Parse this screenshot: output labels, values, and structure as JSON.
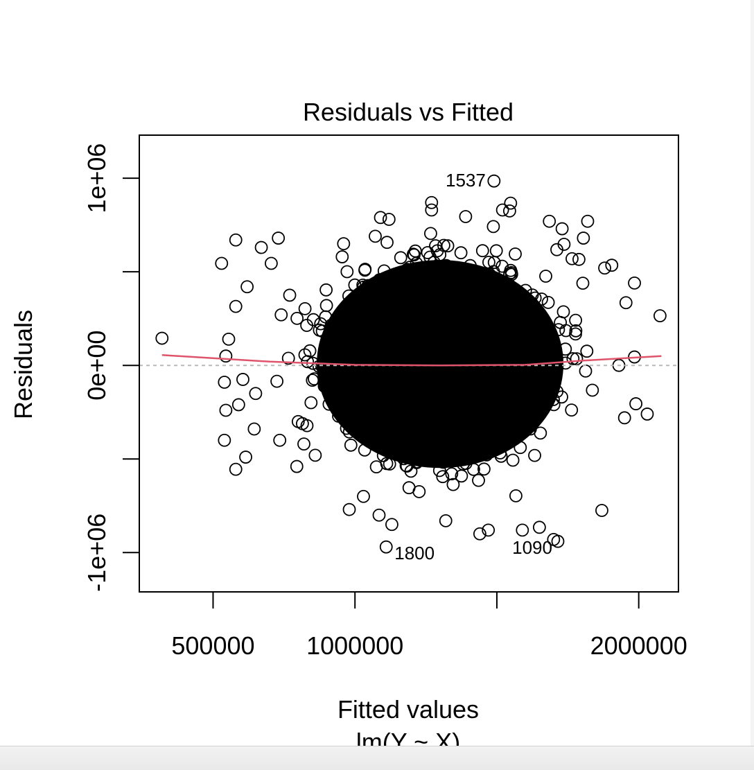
{
  "chart_data": {
    "type": "scatter",
    "title": "Residuals vs Fitted",
    "xlabel": "Fitted values",
    "xsublabel": "lm(Y ~ X)",
    "ylabel": "Residuals",
    "xlim": [
      240000,
      2140000
    ],
    "ylim": [
      -1210000,
      1230000
    ],
    "x_ticks": [
      500000,
      1000000,
      1500000,
      2000000
    ],
    "x_tick_labels": [
      "500000",
      "1000000",
      "",
      "2000000"
    ],
    "y_ticks": [
      -1000000,
      -500000,
      0,
      500000,
      1000000
    ],
    "y_tick_labels": [
      "-1e+06",
      "",
      "0e+00",
      "",
      "1e+06"
    ],
    "grid": false,
    "reference_line": 0,
    "smooth_line": {
      "color": "#DF536B",
      "x": [
        320000,
        700000,
        1000000,
        1300000,
        1600000,
        1800000,
        2080000
      ],
      "y": [
        55000,
        20000,
        3000,
        0,
        3000,
        25000,
        50000
      ]
    },
    "labeled_points": [
      {
        "label": "1537",
        "x": 1490000,
        "y": 985000
      },
      {
        "label": "1800",
        "x": 1110000,
        "y": -970000
      },
      {
        "label": "1090",
        "x": 1715000,
        "y": -940000
      }
    ],
    "outlier_points": [
      {
        "x": 320000,
        "y": 145000
      },
      {
        "x": 2075000,
        "y": 265000
      },
      {
        "x": 730000,
        "y": 680000
      },
      {
        "x": 705000,
        "y": 545000
      },
      {
        "x": 770000,
        "y": 375000
      },
      {
        "x": 740000,
        "y": 270000
      },
      {
        "x": 725000,
        "y": -85000
      },
      {
        "x": 735000,
        "y": -400000
      },
      {
        "x": 795000,
        "y": -540000
      },
      {
        "x": 860000,
        "y": -480000
      },
      {
        "x": 980000,
        "y": -770000
      },
      {
        "x": 1030000,
        "y": -700000
      },
      {
        "x": 1085000,
        "y": -800000
      },
      {
        "x": 1130000,
        "y": -850000
      },
      {
        "x": 1320000,
        "y": -830000
      },
      {
        "x": 1440000,
        "y": -900000
      },
      {
        "x": 1470000,
        "y": -880000
      },
      {
        "x": 1590000,
        "y": -880000
      },
      {
        "x": 1650000,
        "y": -865000
      },
      {
        "x": 1700000,
        "y": -930000
      },
      {
        "x": 1870000,
        "y": -775000
      },
      {
        "x": 1950000,
        "y": -280000
      },
      {
        "x": 1990000,
        "y": -205000
      },
      {
        "x": 2030000,
        "y": -260000
      },
      {
        "x": 1930000,
        "y": 0
      },
      {
        "x": 1985000,
        "y": 45000
      },
      {
        "x": 1985000,
        "y": 440000
      },
      {
        "x": 1955000,
        "y": 335000
      },
      {
        "x": 1905000,
        "y": 535000
      },
      {
        "x": 1820000,
        "y": 770000
      },
      {
        "x": 1270000,
        "y": 870000
      },
      {
        "x": 1270000,
        "y": 830000
      },
      {
        "x": 1390000,
        "y": 795000
      },
      {
        "x": 1520000,
        "y": 830000
      },
      {
        "x": 1545000,
        "y": 825000
      },
      {
        "x": 1730000,
        "y": 730000
      },
      {
        "x": 1685000,
        "y": 770000
      },
      {
        "x": 1090000,
        "y": 790000
      },
      {
        "x": 1120000,
        "y": 780000
      },
      {
        "x": 960000,
        "y": 650000
      },
      {
        "x": 955000,
        "y": 580000
      },
      {
        "x": 1805000,
        "y": 680000
      },
      {
        "x": 1765000,
        "y": 570000
      },
      {
        "x": 1880000,
        "y": 520000
      },
      {
        "x": 530000,
        "y": 545000
      },
      {
        "x": 580000,
        "y": 670000
      },
      {
        "x": 670000,
        "y": 630000
      },
      {
        "x": 620000,
        "y": 420000
      },
      {
        "x": 580000,
        "y": 315000
      },
      {
        "x": 555000,
        "y": 140000
      },
      {
        "x": 545000,
        "y": 50000
      },
      {
        "x": 540000,
        "y": -90000
      },
      {
        "x": 545000,
        "y": -240000
      },
      {
        "x": 540000,
        "y": -400000
      },
      {
        "x": 580000,
        "y": -555000
      },
      {
        "x": 615000,
        "y": -490000
      },
      {
        "x": 590000,
        "y": -210000
      },
      {
        "x": 605000,
        "y": -75000
      },
      {
        "x": 650000,
        "y": -150000
      },
      {
        "x": 645000,
        "y": -340000
      },
      {
        "x": 800000,
        "y": -300000
      },
      {
        "x": 820000,
        "y": -420000
      }
    ]
  }
}
